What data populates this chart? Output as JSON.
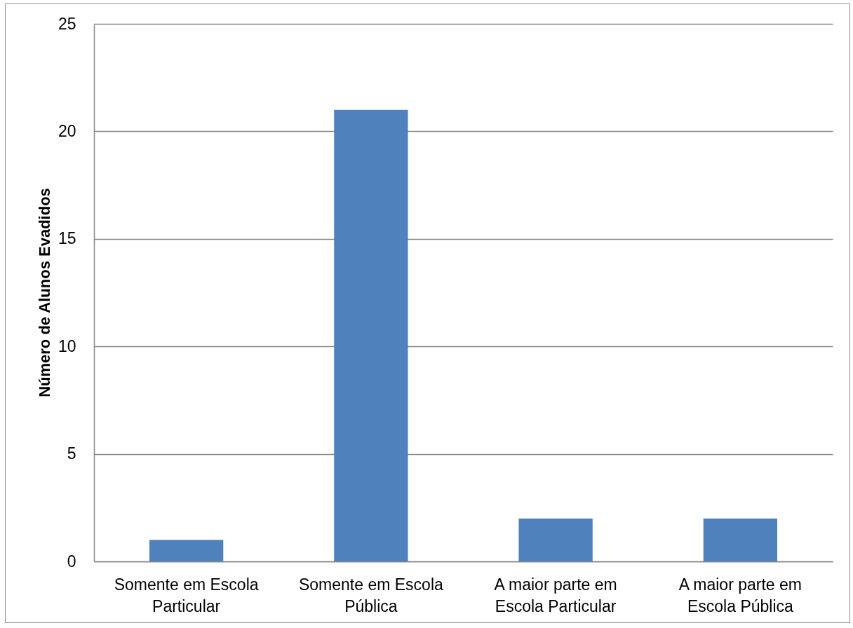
{
  "chart_data": {
    "type": "bar",
    "ylabel": "Número de Alunos Evadidos",
    "categories": [
      "Somente em Escola Particular",
      "Somente em Escola Pública",
      "A maior parte em Escola Particular",
      "A maior parte em Escola Pública"
    ],
    "values": [
      1,
      21,
      2,
      2
    ],
    "color": "#4f81bd",
    "ylim": [
      0,
      25
    ],
    "yticks": [
      0,
      5,
      10,
      15,
      20,
      25
    ],
    "grid": "y"
  }
}
